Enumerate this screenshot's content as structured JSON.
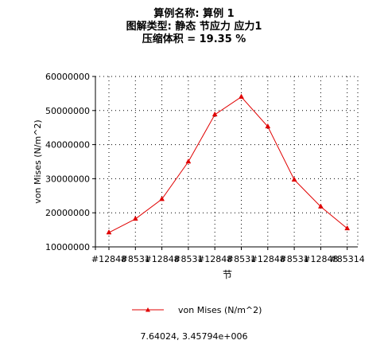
{
  "titles": {
    "line1": "算例名称: 算例 1",
    "line2": "图解类型: 静态 节应力 应力1",
    "line3": "压缩体积 = 19.35 %"
  },
  "footer": {
    "coords": "7.64024, 3.45794e+006"
  },
  "colors": {
    "series": "#e00000",
    "grid": "#000000"
  },
  "chart_data": {
    "type": "line",
    "xlabel": "节",
    "ylabel": "von Mises (N/m^2)",
    "ylim": [
      10000000,
      60000000
    ],
    "yticks": [
      10000000,
      20000000,
      30000000,
      40000000,
      50000000,
      60000000
    ],
    "ytick_labels": [
      "10000000",
      "20000000",
      "30000000",
      "40000000",
      "50000000",
      "60000000"
    ],
    "x": [
      1,
      2,
      3,
      4,
      5,
      6,
      7,
      8,
      9,
      10
    ],
    "xtick_labels": [
      "#12848",
      "#8531",
      "#12848",
      "#8531",
      "#12848",
      "#8531",
      "#12848",
      "#8531",
      "#12848",
      "#85314"
    ],
    "grid": true,
    "legend_position": "bottom",
    "series": [
      {
        "name": "von Mises (N/m^2)",
        "marker": "triangle",
        "values": [
          14200000,
          18200000,
          24000000,
          35000000,
          48800000,
          54000000,
          45300000,
          29700000,
          21800000,
          15400000
        ]
      }
    ]
  }
}
